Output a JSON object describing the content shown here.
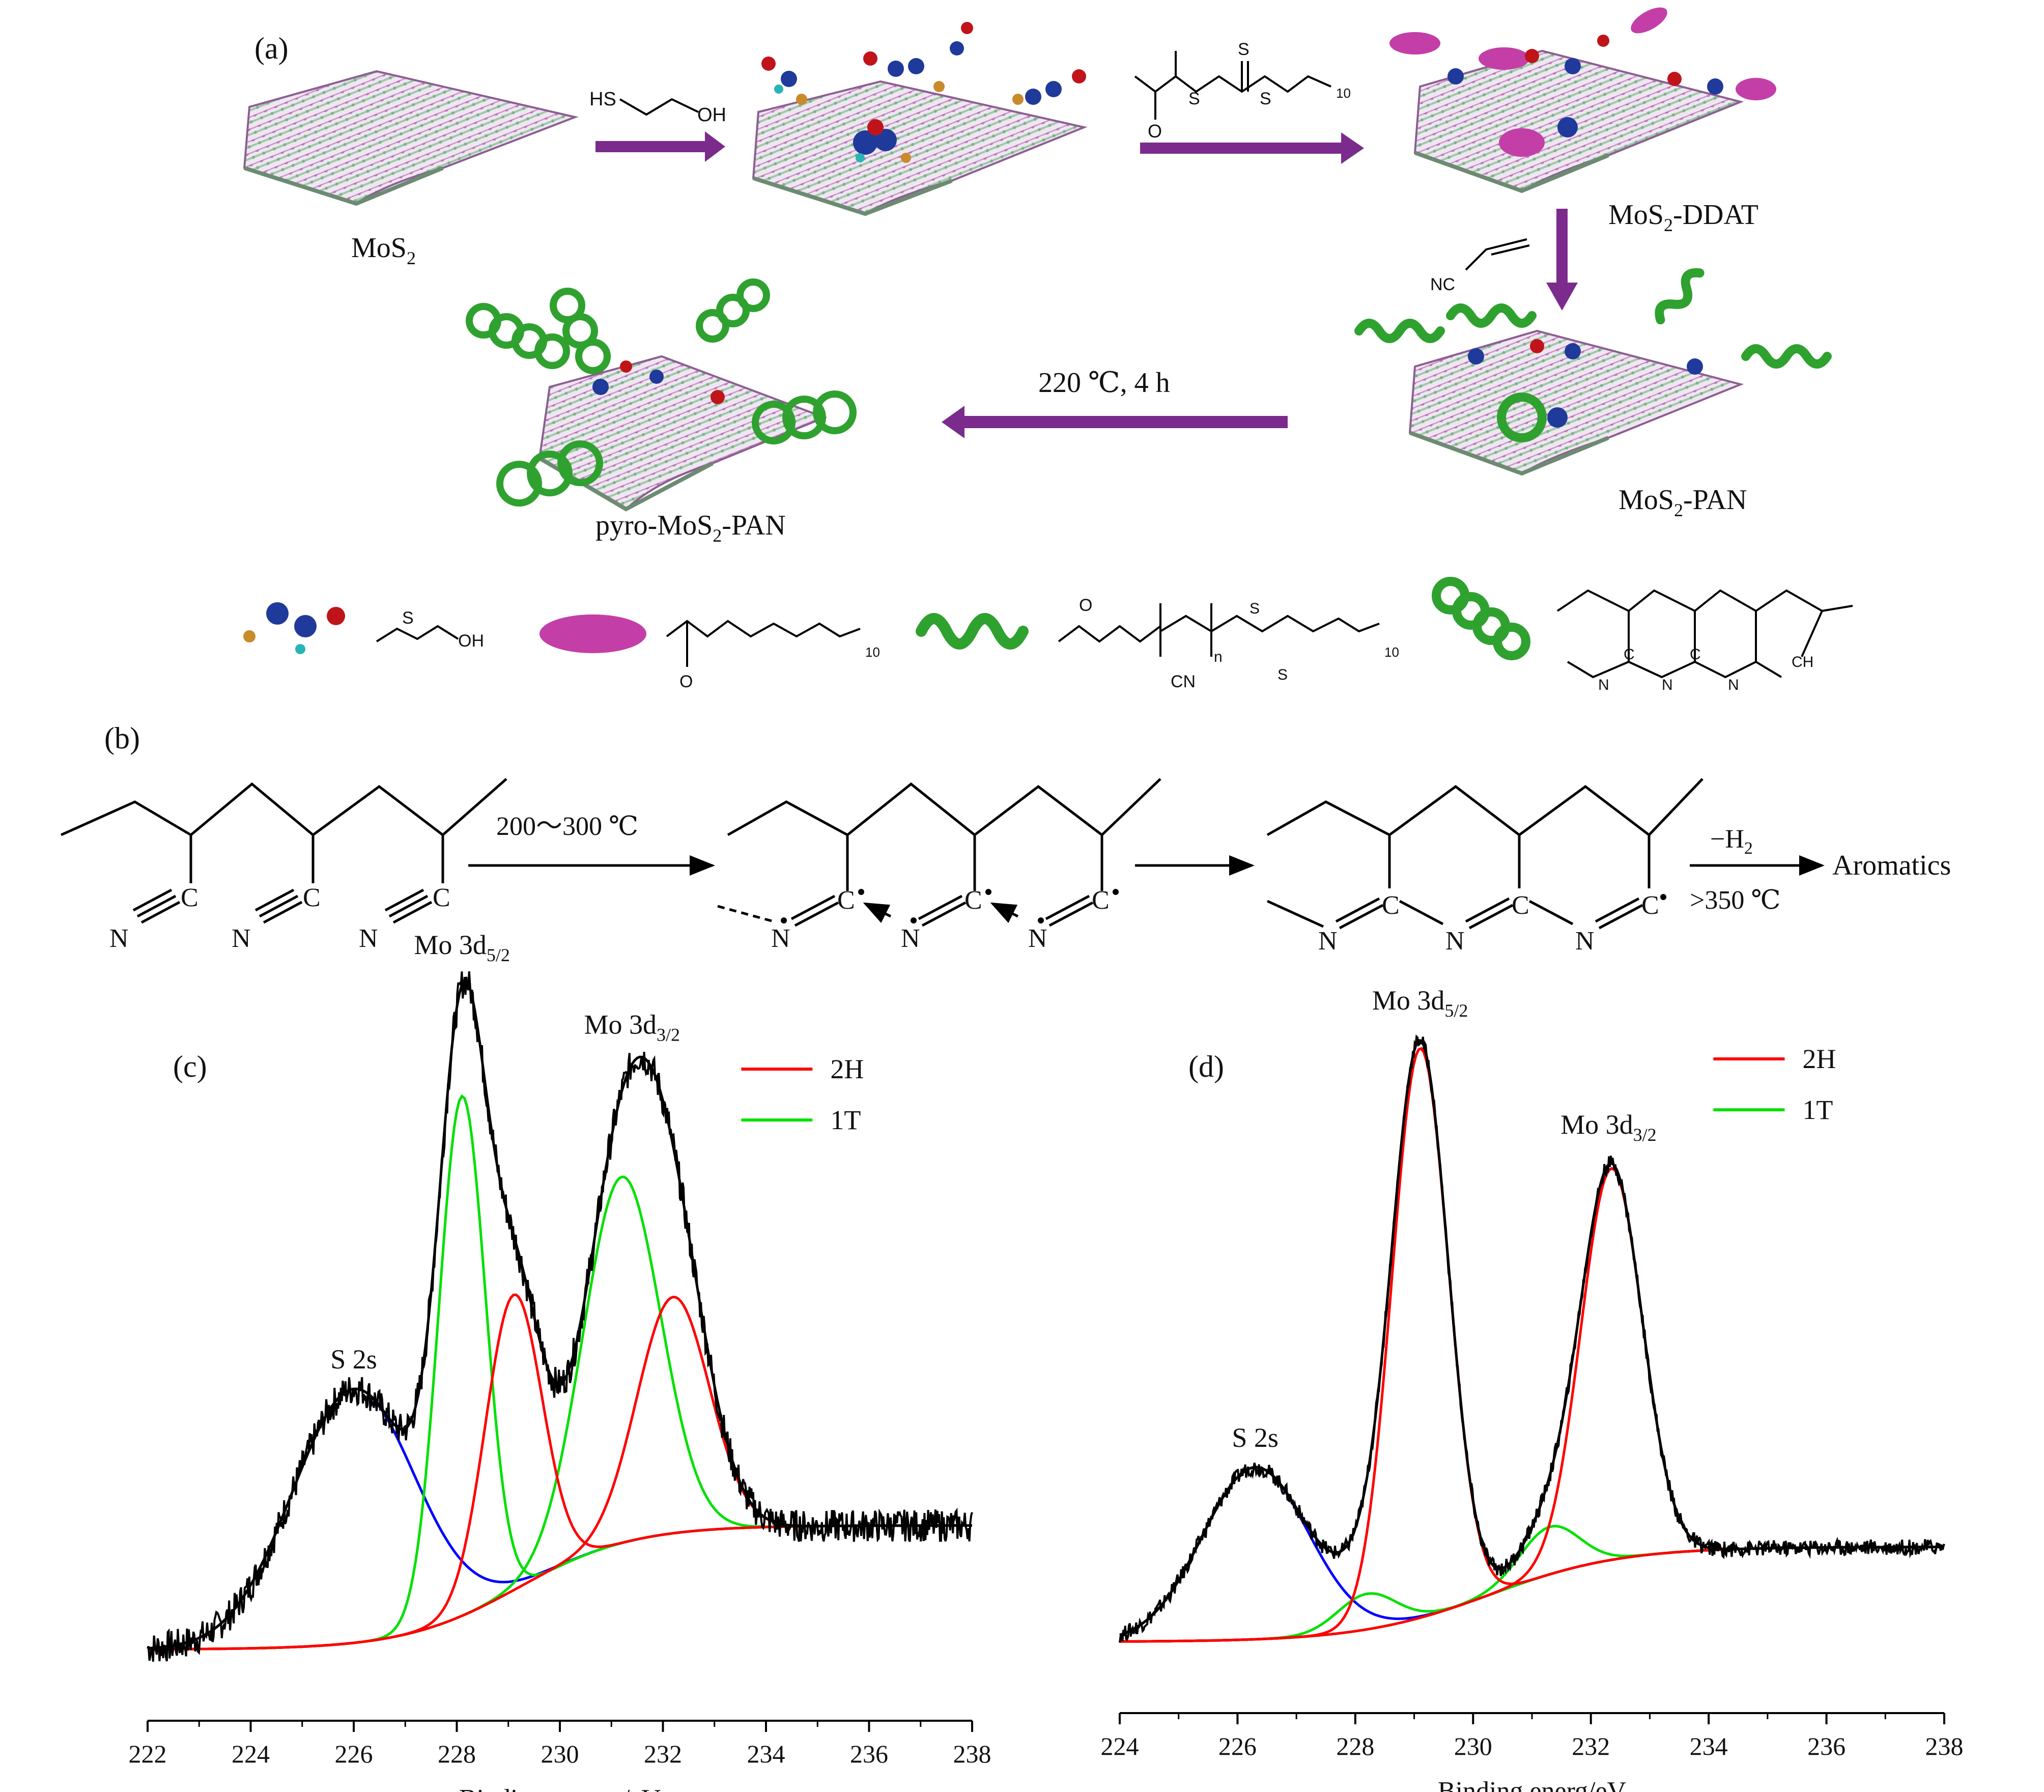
{
  "panel_labels": {
    "a": "(a)",
    "b": "(b)",
    "c": "(c)",
    "d": "(d)"
  },
  "scheme_a": {
    "mos2": "MoS",
    "mos2_sub": "2",
    "reagent1": "HS",
    "reagent1_oh": "OH",
    "reagent2_s": "S",
    "reagent2_o": "O",
    "reagent2_n": "10",
    "mos2_ddat_a": "MoS",
    "mos2_ddat_sub": "2",
    "mos2_ddat_b": "-DDAT",
    "monomer": "NC",
    "mos2_pan_a": "MoS",
    "mos2_pan_sub": "2",
    "mos2_pan_b": "-PAN",
    "condition": "220 ℃, 4 h",
    "pyro_a": "pyro-MoS",
    "pyro_sub": "2",
    "pyro_b": "-PAN",
    "legend_s": "S",
    "legend_oh": "OH",
    "legend_o": "O",
    "legend_10": "10",
    "legend_n": "n",
    "legend_cn": "CN",
    "legend_ring_n": "N",
    "legend_ring_c": "C",
    "legend_ring_ch": "CH"
  },
  "scheme_b": {
    "cond1": "200～300 ℃",
    "minus_h2": "−H",
    "minus_h2_sub": "2",
    "cond2": ">350 ℃",
    "product": "Aromatics",
    "N": "N",
    "C": "C"
  },
  "colors": {
    "purple_arrow": "#7b2b8c",
    "red": "#ff0000",
    "green": "#00e000",
    "blue": "#0000ff",
    "black": "#000000",
    "sheet_pink": "#d9a3d6",
    "sheet_green": "#8fbf9a",
    "pink_chain": "#c43ea8",
    "green_polymer": "#2fa12f"
  },
  "chart_data": [
    {
      "type": "line",
      "panel": "(c)",
      "xlabel": "Binding energy/eV",
      "ylabel": "",
      "xlim": [
        222,
        238
      ],
      "xticks": [
        222,
        224,
        226,
        228,
        230,
        232,
        234,
        236,
        238
      ],
      "ylim": [
        0,
        1
      ],
      "legend": {
        "position": "top-right",
        "entries": [
          {
            "name": "2H",
            "color": "#ff0000"
          },
          {
            "name": "1T",
            "color": "#00e000"
          }
        ]
      },
      "annotations": [
        {
          "text": "Mo 3d",
          "sub": "5/2",
          "x": 228.1
        },
        {
          "text": "Mo 3d",
          "sub": "3/2",
          "x": 231.4
        },
        {
          "text": "S 2s",
          "x": 226.0
        }
      ],
      "series": [
        {
          "name": "2H",
          "color": "#ff0000",
          "peaks": [
            {
              "center": 229.1,
              "height": 0.5,
              "width": 0.55
            },
            {
              "center": 232.2,
              "height": 0.4,
              "width": 0.7
            }
          ]
        },
        {
          "name": "1T",
          "color": "#00e000",
          "peaks": [
            {
              "center": 228.1,
              "height": 0.88,
              "width": 0.45
            },
            {
              "center": 231.2,
              "height": 0.62,
              "width": 0.75
            }
          ]
        },
        {
          "name": "",
          "color": "#0000ff",
          "peaks": [
            {
              "center": 226.0,
              "height": 0.43,
              "width": 1.2
            }
          ]
        }
      ]
    },
    {
      "type": "line",
      "panel": "(d)",
      "xlabel": "Binding energ/eV",
      "ylabel": "",
      "xlim": [
        224,
        238
      ],
      "xticks": [
        224,
        226,
        228,
        230,
        232,
        234,
        236,
        238
      ],
      "ylim": [
        0,
        1
      ],
      "legend": {
        "position": "top-right",
        "entries": [
          {
            "name": "2H",
            "color": "#ff0000"
          },
          {
            "name": "1T",
            "color": "#00e000"
          }
        ]
      },
      "annotations": [
        {
          "text": "Mo 3d",
          "sub": "5/2",
          "x": 229.1
        },
        {
          "text": "Mo 3d",
          "sub": "3/2",
          "x": 232.3
        },
        {
          "text": "S 2s",
          "x": 226.3
        }
      ],
      "series": [
        {
          "name": "2H",
          "color": "#ff0000",
          "peaks": [
            {
              "center": 229.1,
              "height": 0.96,
              "width": 0.48
            },
            {
              "center": 232.35,
              "height": 0.66,
              "width": 0.52
            }
          ]
        },
        {
          "name": "1T",
          "color": "#00e000",
          "peaks": [
            {
              "center": 228.2,
              "height": 0.06,
              "width": 0.5
            },
            {
              "center": 231.3,
              "height": 0.08,
              "width": 0.5
            }
          ]
        },
        {
          "name": "",
          "color": "#0000ff",
          "peaks": [
            {
              "center": 226.3,
              "height": 0.29,
              "width": 0.9
            }
          ]
        }
      ]
    }
  ]
}
